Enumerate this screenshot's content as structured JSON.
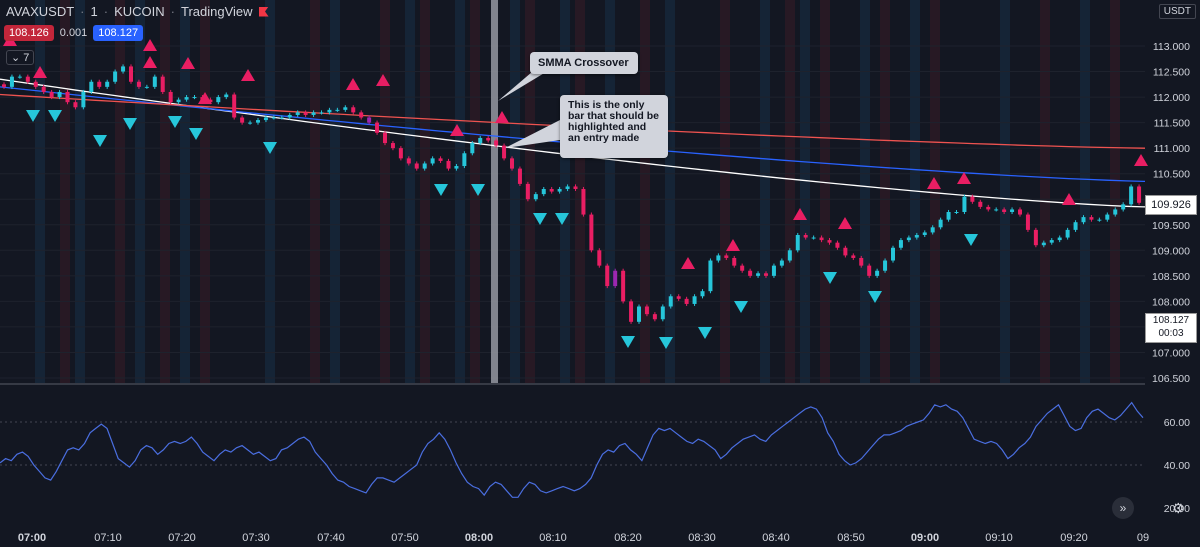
{
  "header": {
    "symbol": "AVAXUSDT",
    "interval": "1",
    "exchange": "KUCOIN",
    "source": "TradingView"
  },
  "quote": {
    "bid": "108.126",
    "spread": "0.001",
    "ask": "108.127"
  },
  "indicators_collapsed": "7",
  "currency": "USDT",
  "last_price_label": "109.926",
  "current_price_label": "108.127",
  "countdown": "00:03",
  "annotations": {
    "crossover": "SMMA Crossover",
    "note": "This is the only bar that should be highlighted and an entry made"
  },
  "colors": {
    "background": "#131722",
    "up": "#26c6da",
    "down": "#e91e63",
    "highlight": "#9c27b0",
    "smma_white": "#ffffff",
    "smma_blue": "#2962ff",
    "smma_red": "#ef5350",
    "osc": "#4a6ee0"
  },
  "chart_data": [
    {
      "type": "candlestick",
      "ylim": [
        106.5,
        113.2
      ],
      "y_ticks": [
        "113.000",
        "112.500",
        "112.000",
        "111.500",
        "111.000",
        "110.500",
        "110.000",
        "109.500",
        "109.000",
        "108.500",
        "108.000",
        "107.500",
        "107.000",
        "106.500"
      ],
      "x_ticks": [
        "07:00",
        "07:10",
        "07:20",
        "07:30",
        "07:40",
        "07:50",
        "08:00",
        "08:10",
        "08:20",
        "08:30",
        "08:40",
        "08:50",
        "09:00",
        "09:10",
        "09:20",
        "09"
      ],
      "closes": [
        112.2,
        112.4,
        112.4,
        112.3,
        112.2,
        112.1,
        112.0,
        112.1,
        111.9,
        111.8,
        112.1,
        112.3,
        112.2,
        112.3,
        112.5,
        112.6,
        112.3,
        112.2,
        112.2,
        112.4,
        112.1,
        111.9,
        111.95,
        112.0,
        112.0,
        111.95,
        111.9,
        112.0,
        112.05,
        111.6,
        111.5,
        111.5,
        111.55,
        111.6,
        111.6,
        111.6,
        111.65,
        111.7,
        111.65,
        111.7,
        111.7,
        111.75,
        111.75,
        111.8,
        111.7,
        111.6,
        111.5,
        111.3,
        111.1,
        111.0,
        110.8,
        110.7,
        110.6,
        110.7,
        110.8,
        110.75,
        110.6,
        110.65,
        110.9,
        111.1,
        111.2,
        111.15,
        111.05,
        110.8,
        110.6,
        110.3,
        110.0,
        110.1,
        110.2,
        110.15,
        110.2,
        110.25,
        110.2,
        109.7,
        109.0,
        108.7,
        108.3,
        108.6,
        108.0,
        107.6,
        107.9,
        107.75,
        107.65,
        107.9,
        108.1,
        108.05,
        107.95,
        108.1,
        108.2,
        108.8,
        108.9,
        108.85,
        108.7,
        108.6,
        108.5,
        108.55,
        108.5,
        108.7,
        108.8,
        109.0,
        109.3,
        109.25,
        109.25,
        109.2,
        109.15,
        109.05,
        108.9,
        108.85,
        108.7,
        108.5,
        108.6,
        108.8,
        109.05,
        109.2,
        109.25,
        109.3,
        109.35,
        109.45,
        109.6,
        109.75,
        109.75,
        110.05,
        109.95,
        109.85,
        109.8,
        109.8,
        109.75,
        109.8,
        109.7,
        109.4,
        109.1,
        109.15,
        109.2,
        109.25,
        109.4,
        109.55,
        109.65,
        109.6,
        109.6,
        109.7,
        109.8,
        109.9,
        110.25,
        109.93
      ],
      "smma": [
        {
          "name": "white",
          "start": 112.35,
          "end": 109.85
        },
        {
          "name": "blue",
          "start": 112.2,
          "end": 110.35
        },
        {
          "name": "red",
          "start": 112.05,
          "end": 111.0
        }
      ],
      "signals_up_count": 19,
      "signals_down_count": 18
    },
    {
      "type": "line",
      "name": "oscillator",
      "ylim": [
        15,
        75
      ],
      "y_ticks": [
        "60.00",
        "40.00",
        "20.00"
      ],
      "reference_lines": [
        60,
        40
      ],
      "values": [
        41,
        43,
        42,
        45,
        46,
        44,
        40,
        37,
        34,
        33,
        37,
        42,
        47,
        48,
        47,
        50,
        55,
        57,
        59,
        57,
        50,
        43,
        41,
        39,
        42,
        47,
        49,
        48,
        45,
        47,
        50,
        51,
        50,
        51,
        53,
        50,
        46,
        44,
        42,
        45,
        47,
        46,
        48,
        49,
        47,
        45,
        46,
        44,
        42,
        43,
        47,
        48,
        50,
        52,
        53,
        51,
        46,
        43,
        40,
        36,
        33,
        32,
        30,
        29,
        28,
        27,
        31,
        34,
        34,
        33,
        32,
        34,
        36,
        38,
        40,
        46,
        50,
        52,
        55,
        52,
        47,
        41,
        36,
        32,
        30,
        29,
        26,
        30,
        32,
        31,
        28,
        25,
        25,
        29,
        32,
        31,
        28,
        27,
        28,
        29,
        30,
        29,
        28,
        29,
        31,
        34,
        40,
        45,
        47,
        46,
        49,
        50,
        47,
        45,
        42,
        48,
        54,
        57,
        56,
        57,
        55,
        53,
        51,
        50,
        52,
        51,
        49,
        47,
        43,
        45,
        48,
        50,
        52,
        53,
        54,
        52,
        51,
        54,
        56,
        58,
        60,
        62,
        64,
        66,
        67,
        66,
        62,
        55,
        51,
        45,
        42,
        40,
        41,
        43,
        46,
        49,
        52,
        54,
        54,
        55,
        56,
        58,
        59,
        60,
        61,
        64,
        68,
        67,
        68,
        66,
        65,
        62,
        57,
        52,
        51,
        50,
        51,
        50,
        47,
        43,
        45,
        48,
        50,
        53,
        58,
        61,
        64,
        66,
        68,
        63,
        58,
        56,
        57,
        62,
        65,
        66,
        64,
        62,
        61,
        63,
        66,
        69,
        65,
        62
      ]
    }
  ]
}
